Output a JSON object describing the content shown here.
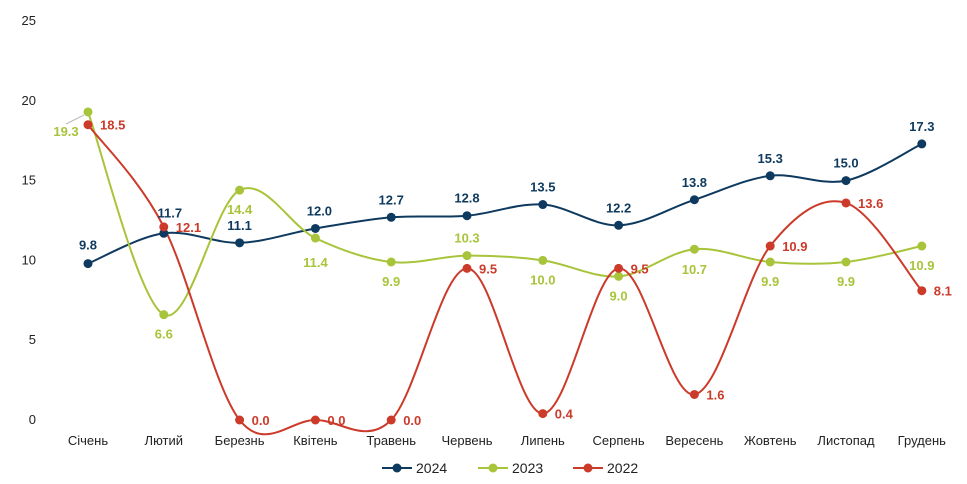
{
  "chart_data": {
    "type": "line",
    "title": "",
    "xlabel": "",
    "ylabel": "",
    "ylim": [
      0,
      25
    ],
    "yticks": [
      0,
      5,
      10,
      15,
      20,
      25
    ],
    "grid": false,
    "legend_position": "bottom",
    "smooth": true,
    "categories": [
      "Січень",
      "Лютий",
      "Березнь",
      "Квітень",
      "Травень",
      "Червень",
      "Липень",
      "Серпень",
      "Вересень",
      "Жовтень",
      "Листопад",
      "Грудень"
    ],
    "series": [
      {
        "name": "2024",
        "color": "#0e3a5f",
        "values": [
          9.8,
          11.7,
          11.1,
          12.0,
          12.7,
          12.8,
          13.5,
          12.2,
          13.8,
          15.3,
          15.0,
          17.3
        ]
      },
      {
        "name": "2023",
        "color": "#a8c43a",
        "values": [
          19.3,
          6.6,
          14.4,
          11.4,
          9.9,
          10.3,
          10.0,
          9.0,
          10.7,
          9.9,
          9.9,
          10.9
        ]
      },
      {
        "name": "2022",
        "color": "#cc3a2a",
        "values": [
          18.5,
          12.1,
          0.0,
          0.0,
          0.0,
          9.5,
          0.4,
          9.5,
          1.6,
          10.9,
          13.6,
          8.1
        ]
      }
    ]
  }
}
